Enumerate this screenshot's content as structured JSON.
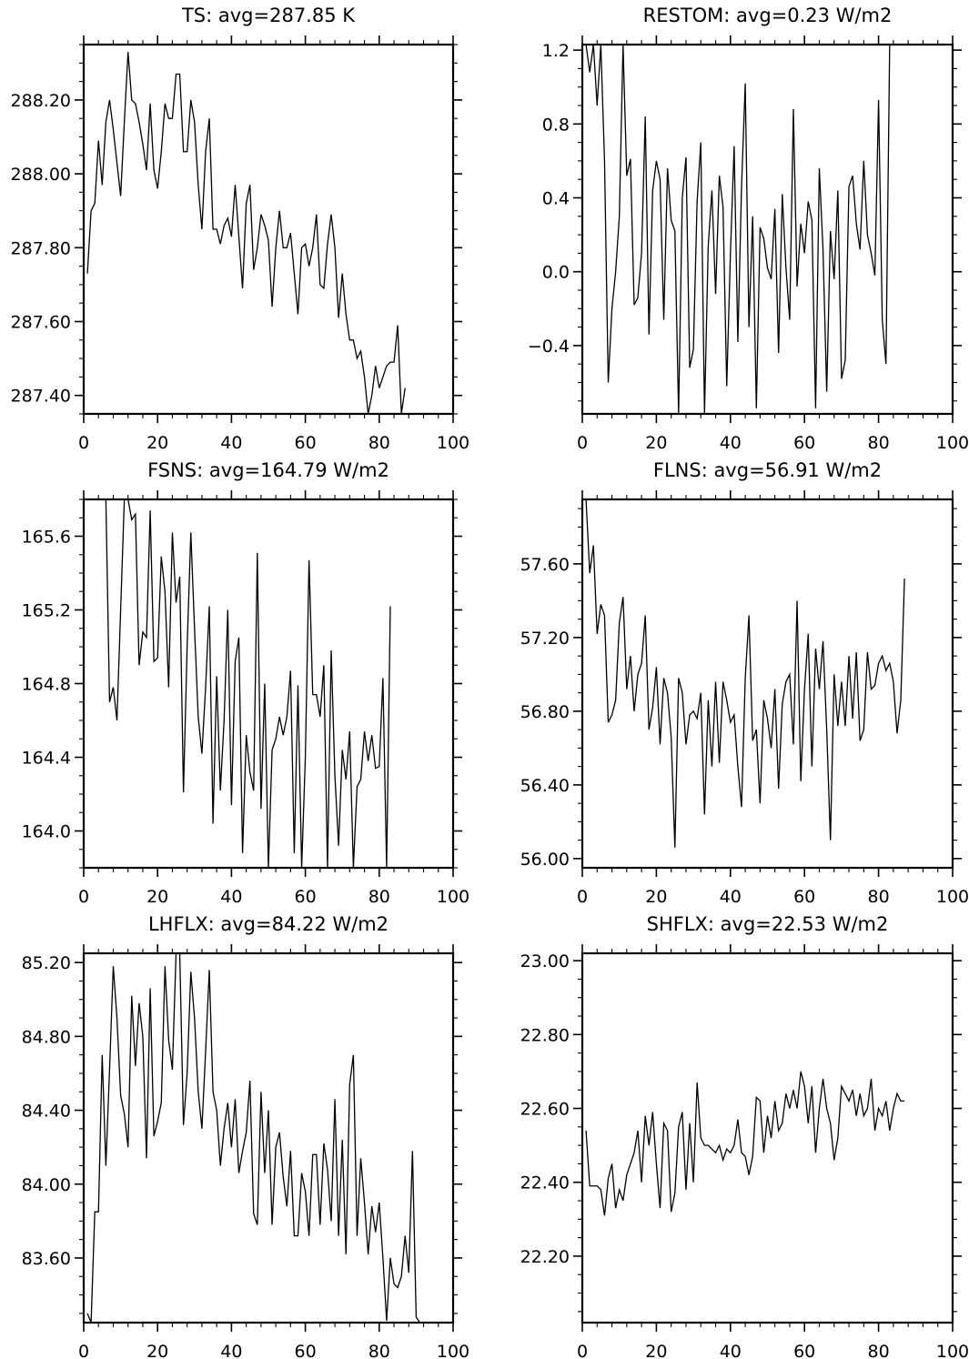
{
  "chart_data": [
    {
      "type": "line",
      "title": "TS: avg=287.85 K",
      "xlim": [
        0,
        100
      ],
      "ylim": [
        287.35,
        288.35
      ],
      "x_ticks": [
        0,
        20,
        40,
        60,
        80,
        100
      ],
      "x_tick_labels": [
        "0",
        "20",
        "40",
        "60",
        "80",
        "100"
      ],
      "y_ticks": [
        287.4,
        287.6,
        287.8,
        288.0,
        288.2
      ],
      "y_tick_labels": [
        "287.40",
        "287.60",
        "287.80",
        "288.00",
        "288.20"
      ],
      "series": [
        {
          "x_start": 1,
          "x_step": 1,
          "values": [
            287.73,
            287.9,
            287.92,
            288.09,
            287.97,
            288.14,
            288.2,
            288.12,
            288.03,
            287.94,
            288.14,
            288.33,
            288.2,
            288.19,
            288.14,
            288.08,
            288.01,
            288.19,
            288.01,
            287.96,
            288.06,
            288.19,
            288.15,
            288.15,
            288.27,
            288.27,
            288.06,
            288.06,
            288.2,
            288.14,
            287.97,
            287.85,
            288.06,
            288.15,
            287.85,
            287.85,
            287.81,
            287.86,
            287.88,
            287.83,
            287.97,
            287.83,
            287.69,
            287.92,
            287.97,
            287.74,
            287.8,
            287.89,
            287.86,
            287.82,
            287.64,
            287.8,
            287.9,
            287.8,
            287.8,
            287.84,
            287.73,
            287.62,
            287.8,
            287.81,
            287.75,
            287.8,
            287.89,
            287.7,
            287.69,
            287.81,
            287.89,
            287.8,
            287.61,
            287.73,
            287.62,
            287.55,
            287.55,
            287.5,
            287.52,
            287.45,
            287.35,
            287.4,
            287.48,
            287.42,
            287.45,
            287.48,
            287.49,
            287.49,
            287.59,
            287.35,
            287.42
          ]
        }
      ]
    },
    {
      "type": "line",
      "title": "RESTOM: avg=0.23 W/m2",
      "xlim": [
        0,
        100
      ],
      "ylim": [
        -0.77,
        1.23
      ],
      "x_ticks": [
        0,
        20,
        40,
        60,
        80,
        100
      ],
      "x_tick_labels": [
        "0",
        "20",
        "40",
        "60",
        "80",
        "100"
      ],
      "y_ticks": [
        -0.4,
        0.0,
        0.4,
        0.8,
        1.2
      ],
      "y_tick_labels": [
        "−0.4",
        "0.0",
        "0.4",
        "0.8",
        "1.2"
      ],
      "series": [
        {
          "x_start": 1,
          "x_step": 1,
          "values": [
            1.23,
            1.08,
            1.23,
            0.9,
            1.23,
            0.6,
            -0.6,
            -0.2,
            0.0,
            0.3,
            1.23,
            0.52,
            0.61,
            -0.18,
            -0.14,
            0.1,
            0.84,
            -0.34,
            0.44,
            0.6,
            0.5,
            -0.26,
            0.56,
            0.28,
            0.22,
            -0.77,
            0.4,
            0.62,
            -0.52,
            -0.42,
            0.38,
            0.7,
            -0.77,
            0.14,
            0.44,
            -0.12,
            0.52,
            0.35,
            -0.62,
            0.1,
            0.68,
            -0.38,
            0.46,
            1.02,
            -0.3,
            0.3,
            -0.74,
            0.24,
            0.18,
            0.02,
            -0.04,
            0.34,
            -0.44,
            0.42,
            0.02,
            -0.26,
            0.88,
            -0.08,
            0.26,
            0.1,
            0.38,
            0.28,
            -0.74,
            0.56,
            0.12,
            -0.65,
            0.22,
            -0.04,
            0.44,
            -0.58,
            -0.48,
            0.46,
            0.52,
            0.26,
            0.12,
            0.6,
            0.2,
            0.1,
            -0.02,
            0.93,
            -0.26,
            -0.5,
            1.23
          ]
        }
      ]
    },
    {
      "type": "line",
      "title": "FSNS: avg=164.79 W/m2",
      "xlim": [
        0,
        100
      ],
      "ylim": [
        163.8,
        165.8
      ],
      "x_ticks": [
        0,
        20,
        40,
        60,
        80,
        100
      ],
      "x_tick_labels": [
        "0",
        "20",
        "40",
        "60",
        "80",
        "100"
      ],
      "y_ticks": [
        164.0,
        164.4,
        164.8,
        165.2,
        165.6
      ],
      "y_tick_labels": [
        "164.0",
        "164.4",
        "164.8",
        "165.2",
        "165.6"
      ],
      "series": [
        {
          "x_start": 6,
          "x_step": 1,
          "values": [
            165.8,
            164.7,
            164.78,
            164.6,
            165.2,
            165.8,
            165.8,
            165.69,
            165.72,
            164.9,
            165.08,
            165.05,
            165.74,
            164.92,
            164.94,
            165.49,
            165.3,
            164.78,
            165.62,
            165.24,
            165.38,
            164.21,
            165.0,
            165.62,
            165.1,
            164.62,
            164.42,
            164.78,
            165.22,
            164.04,
            164.84,
            164.22,
            164.6,
            165.2,
            164.14,
            164.92,
            165.05,
            163.88,
            164.52,
            164.32,
            164.22,
            165.51,
            164.12,
            164.8,
            163.8,
            164.44,
            164.5,
            164.62,
            164.52,
            164.62,
            164.87,
            163.88,
            164.79,
            163.8,
            164.4,
            165.47,
            164.74,
            164.74,
            164.62,
            164.9,
            163.8,
            164.98,
            164.3,
            163.92,
            164.44,
            164.28,
            164.54,
            163.8,
            164.24,
            164.28,
            164.54,
            164.38,
            164.52,
            164.34,
            164.35,
            164.83,
            163.8,
            165.22
          ]
        }
      ]
    },
    {
      "type": "line",
      "title": "FLNS: avg=56.91 W/m2",
      "xlim": [
        0,
        100
      ],
      "ylim": [
        55.95,
        57.95
      ],
      "x_ticks": [
        0,
        20,
        40,
        60,
        80,
        100
      ],
      "x_tick_labels": [
        "0",
        "20",
        "40",
        "60",
        "80",
        "100"
      ],
      "y_ticks": [
        56.0,
        56.4,
        56.8,
        57.2,
        57.6
      ],
      "y_tick_labels": [
        "56.00",
        "56.40",
        "56.80",
        "57.20",
        "57.60"
      ],
      "series": [
        {
          "x_start": 1,
          "x_step": 1,
          "values": [
            57.95,
            57.55,
            57.7,
            57.22,
            57.38,
            57.32,
            56.74,
            56.78,
            56.86,
            57.28,
            57.42,
            56.92,
            57.1,
            56.8,
            57.0,
            57.06,
            57.32,
            56.7,
            56.82,
            57.04,
            56.62,
            56.98,
            56.9,
            56.66,
            56.06,
            56.98,
            56.9,
            56.62,
            56.78,
            56.8,
            56.76,
            56.9,
            56.24,
            56.86,
            56.5,
            56.96,
            56.52,
            56.96,
            56.86,
            56.74,
            56.78,
            56.5,
            56.28,
            56.98,
            57.32,
            56.64,
            56.7,
            56.3,
            56.86,
            56.76,
            56.6,
            56.92,
            56.38,
            56.84,
            56.96,
            57.0,
            56.62,
            57.4,
            56.42,
            56.92,
            57.22,
            56.5,
            57.14,
            56.92,
            57.18,
            56.7,
            56.1,
            57.0,
            56.72,
            56.96,
            56.72,
            57.1,
            56.76,
            57.12,
            56.64,
            56.7,
            57.12,
            56.92,
            56.94,
            57.06,
            57.1,
            57.02,
            57.06,
            56.96,
            56.68,
            56.86,
            57.52
          ]
        }
      ]
    },
    {
      "type": "line",
      "title": "LHFLX: avg=84.22 W/m2",
      "xlim": [
        0,
        100
      ],
      "ylim": [
        83.25,
        85.25
      ],
      "x_ticks": [
        0,
        20,
        40,
        60,
        80,
        100
      ],
      "x_tick_labels": [
        "0",
        "20",
        "40",
        "60",
        "80",
        "100"
      ],
      "y_ticks": [
        83.6,
        84.0,
        84.4,
        84.8,
        85.2
      ],
      "y_tick_labels": [
        "83.60",
        "84.00",
        "84.40",
        "84.80",
        "85.20"
      ],
      "series": [
        {
          "x_start": 1,
          "x_step": 1,
          "values": [
            83.3,
            83.25,
            83.85,
            83.85,
            84.7,
            84.1,
            84.62,
            85.18,
            84.9,
            84.48,
            84.38,
            84.2,
            85.02,
            84.64,
            84.98,
            84.8,
            84.14,
            85.06,
            84.26,
            84.34,
            84.44,
            85.18,
            84.78,
            84.62,
            85.25,
            85.25,
            84.32,
            84.6,
            85.15,
            84.9,
            84.5,
            84.3,
            84.72,
            85.16,
            84.5,
            84.4,
            84.1,
            84.3,
            84.44,
            84.2,
            84.46,
            84.06,
            84.18,
            84.28,
            84.56,
            83.84,
            83.78,
            84.5,
            84.06,
            84.4,
            83.78,
            84.2,
            84.28,
            84.04,
            83.88,
            84.18,
            83.72,
            83.72,
            84.06,
            83.96,
            83.72,
            84.16,
            84.16,
            83.78,
            84.22,
            84.08,
            83.8,
            84.46,
            83.72,
            84.24,
            83.62,
            84.54,
            84.7,
            83.72,
            84.14,
            83.9,
            83.62,
            83.88,
            83.74,
            83.9,
            83.6,
            83.26,
            83.6,
            83.46,
            83.44,
            83.5,
            83.72,
            83.52,
            84.18,
            83.28,
            83.25
          ]
        }
      ]
    },
    {
      "type": "line",
      "title": "SHFLX: avg=22.53 W/m2",
      "xlim": [
        0,
        100
      ],
      "ylim": [
        22.02,
        23.02
      ],
      "x_ticks": [
        0,
        20,
        40,
        60,
        80,
        100
      ],
      "x_tick_labels": [
        "0",
        "20",
        "40",
        "60",
        "80",
        "100"
      ],
      "y_ticks": [
        22.2,
        22.4,
        22.6,
        22.8,
        23.0
      ],
      "y_tick_labels": [
        "22.20",
        "22.40",
        "22.60",
        "22.80",
        "23.00"
      ],
      "series": [
        {
          "x_start": 1,
          "x_step": 1,
          "values": [
            22.54,
            22.39,
            22.39,
            22.39,
            22.38,
            22.31,
            22.41,
            22.45,
            22.33,
            22.38,
            22.35,
            22.42,
            22.45,
            22.48,
            22.54,
            22.4,
            22.58,
            22.5,
            22.59,
            22.45,
            22.33,
            22.56,
            22.54,
            22.32,
            22.37,
            22.55,
            22.59,
            22.38,
            22.56,
            22.4,
            22.67,
            22.52,
            22.5,
            22.5,
            22.49,
            22.48,
            22.5,
            22.46,
            22.49,
            22.48,
            22.5,
            22.57,
            22.48,
            22.47,
            22.42,
            22.47,
            22.63,
            22.62,
            22.48,
            22.58,
            22.52,
            22.62,
            22.54,
            22.56,
            22.64,
            22.6,
            22.65,
            22.6,
            22.7,
            22.66,
            22.56,
            22.66,
            22.48,
            22.6,
            22.68,
            22.6,
            22.56,
            22.46,
            22.52,
            22.66,
            22.64,
            22.62,
            22.65,
            22.58,
            22.64,
            22.58,
            22.6,
            22.68,
            22.54,
            22.6,
            22.58,
            22.62,
            22.54,
            22.6,
            22.64,
            22.62,
            22.62
          ]
        }
      ]
    }
  ]
}
